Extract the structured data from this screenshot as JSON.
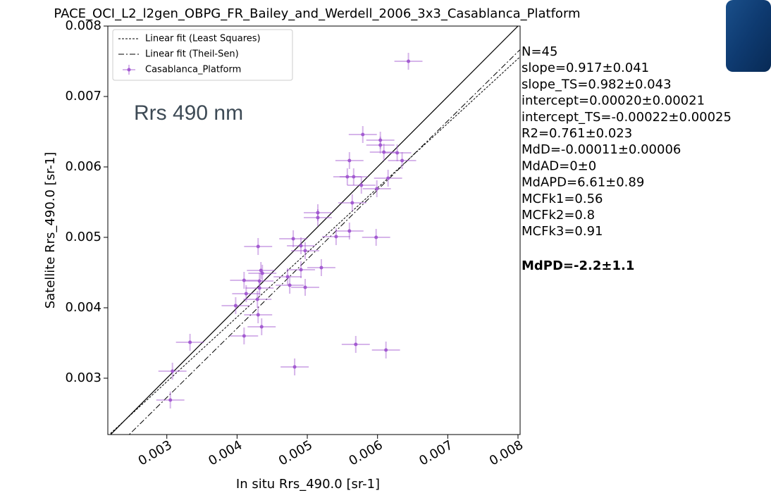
{
  "chart_data": {
    "type": "scatter",
    "title": "PACE_OCI_L2_l2gen_OBPG_FR_Bailey_and_Werdell_2006_3x3_Casablanca_Platform",
    "annotation": "Rrs 490 nm",
    "xlabel": "In situ Rrs_490.0 [sr-1]",
    "ylabel": "Satellite Rrs_490.0 [sr-1]",
    "xlim": [
      0.00216,
      0.00803
    ],
    "ylim": [
      0.0022,
      0.008
    ],
    "xticks": [
      0.003,
      0.004,
      0.005,
      0.006,
      0.007,
      0.008
    ],
    "yticks": [
      0.003,
      0.004,
      0.005,
      0.006,
      0.007,
      0.008
    ],
    "identity_line": true,
    "legend": "upper left",
    "fits": [
      {
        "name": "Linear fit (Least Squares)",
        "slope": 0.917,
        "intercept": 0.0002,
        "dash": "dotted"
      },
      {
        "name": "Linear fit (Theil-Sen)",
        "slope": 0.982,
        "intercept": -0.00022,
        "dash": "dashdot"
      }
    ],
    "series": [
      {
        "name": "Casablanca_Platform",
        "color": "#a35bd1",
        "xerr": 0.0002,
        "yerr": 0.00012,
        "x": [
          0.00644,
          0.00579,
          0.00604,
          0.00604,
          0.00609,
          0.00628,
          0.00635,
          0.0056,
          0.00557,
          0.00566,
          0.00615,
          0.00577,
          0.00599,
          0.00564,
          0.00515,
          0.00515,
          0.0056,
          0.00541,
          0.00598,
          0.0043,
          0.0048,
          0.00491,
          0.00497,
          0.0052,
          0.00434,
          0.00491,
          0.00472,
          0.0041,
          0.00432,
          0.00475,
          0.00432,
          0.00497,
          0.00413,
          0.00429,
          0.00398,
          0.0043,
          0.00435,
          0.0041,
          0.00333,
          0.00569,
          0.00612,
          0.00482,
          0.00308,
          0.00305,
          0.00436
        ],
        "values": [
          0.0075,
          0.00646,
          0.00638,
          0.00631,
          0.00621,
          0.0062,
          0.00609,
          0.00609,
          0.00586,
          0.00586,
          0.00584,
          0.00574,
          0.00569,
          0.00549,
          0.00535,
          0.00528,
          0.00509,
          0.00501,
          0.005,
          0.00487,
          0.00498,
          0.00488,
          0.00481,
          0.00457,
          0.00453,
          0.00454,
          0.00444,
          0.00439,
          0.00438,
          0.00432,
          0.00428,
          0.00429,
          0.0042,
          0.00412,
          0.00403,
          0.0039,
          0.00373,
          0.0036,
          0.00351,
          0.00348,
          0.0034,
          0.00316,
          0.0031,
          0.00269,
          0.00449
        ]
      }
    ],
    "stats": [
      "N=45",
      "slope=0.917±0.041",
      "slope_TS=0.982±0.043",
      "intercept=0.00020±0.00021",
      "intercept_TS=-0.00022±0.00025",
      "R2=0.761±0.023",
      "MdD=-0.00011±0.00006",
      "MdAD=0±0",
      "MdAPD=6.61±0.89",
      "MCFk1=0.56",
      "MCFk2=0.8",
      "MCFk3=0.91"
    ],
    "stats_bold": "MdPD=-2.2±1.1"
  }
}
